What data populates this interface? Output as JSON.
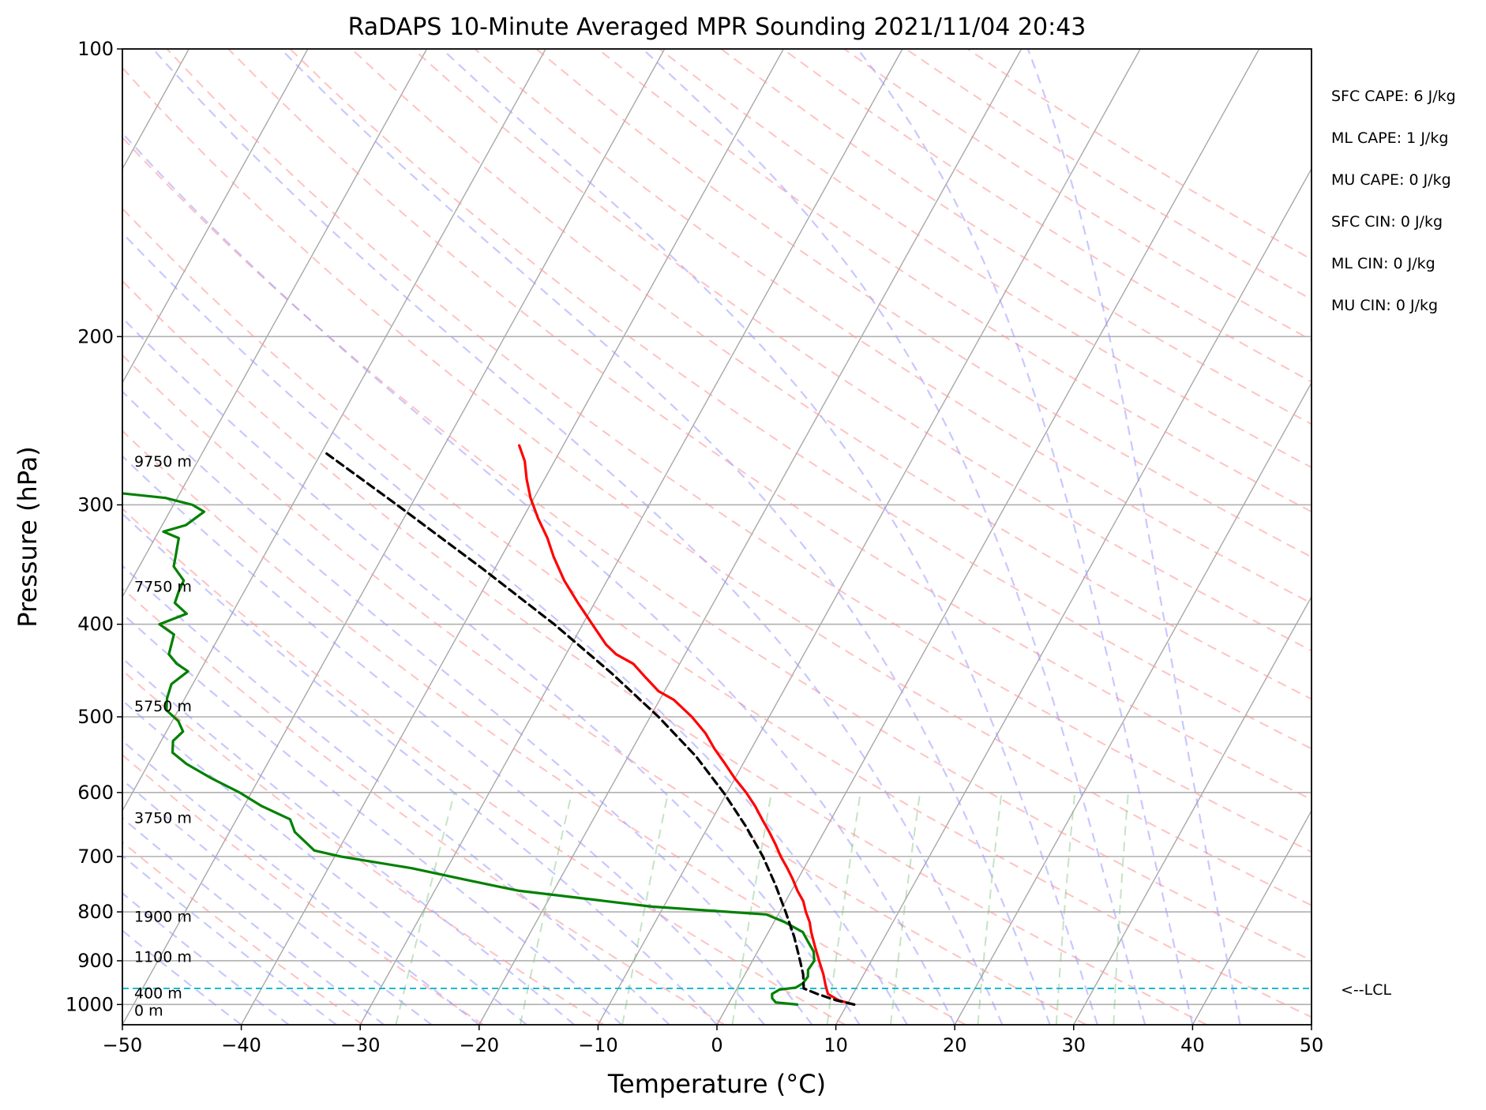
{
  "chart_data": {
    "type": "line",
    "title": "RaDAPS 10-Minute Averaged MPR Sounding 2021/11/04 20:43",
    "xlabel": "Temperature (°C)",
    "ylabel": "Pressure (hPa)",
    "xlim": [
      -50,
      50
    ],
    "ylim": [
      1050,
      100
    ],
    "y_scale": "log",
    "skew": "skew-T log-p",
    "grid": true,
    "x_ticks": [
      -50,
      -40,
      -30,
      -20,
      -10,
      0,
      10,
      20,
      30,
      40,
      50
    ],
    "x_tick_labels": [
      "−50",
      "−40",
      "−30",
      "−20",
      "−10",
      "0",
      "10",
      "20",
      "30",
      "40",
      "50"
    ],
    "y_ticks": [
      100,
      200,
      300,
      400,
      500,
      600,
      700,
      800,
      900,
      1000
    ],
    "y_tick_labels": [
      "100",
      "200",
      "300",
      "400",
      "500",
      "600",
      "700",
      "800",
      "900",
      "1000"
    ],
    "stats": [
      "SFC CAPE: 6 J/kg",
      "ML CAPE: 1 J/kg",
      "MU CAPE: 0 J/kg",
      "SFC CIN: 0 J/kg",
      "ML CIN: 0 J/kg",
      "MU CIN: 0 J/kg"
    ],
    "lcl_label": "<--LCL",
    "lcl_pressure": 962,
    "height_labels": [
      {
        "p": 270,
        "text": "9750 m"
      },
      {
        "p": 365,
        "text": "7750 m"
      },
      {
        "p": 487,
        "text": "5750 m"
      },
      {
        "p": 637,
        "text": "3750 m"
      },
      {
        "p": 808,
        "text": "1900 m"
      },
      {
        "p": 891,
        "text": "1100 m"
      },
      {
        "p": 972,
        "text": "400 m"
      },
      {
        "p": 1014,
        "text": "0 m"
      }
    ],
    "series": [
      {
        "key": "temperature",
        "color": "#ff0000",
        "points": [
          [
            1000,
            10.6
          ],
          [
            990,
            9.1
          ],
          [
            975,
            7.9
          ],
          [
            955,
            7.3
          ],
          [
            930,
            6.6
          ],
          [
            900,
            5.6
          ],
          [
            870,
            4.6
          ],
          [
            840,
            3.6
          ],
          [
            820,
            3.0
          ],
          [
            800,
            2.2
          ],
          [
            780,
            1.5
          ],
          [
            760,
            0.5
          ],
          [
            740,
            -0.4
          ],
          [
            720,
            -1.4
          ],
          [
            700,
            -2.5
          ],
          [
            680,
            -3.5
          ],
          [
            660,
            -4.6
          ],
          [
            640,
            -5.8
          ],
          [
            620,
            -7.0
          ],
          [
            600,
            -8.4
          ],
          [
            580,
            -10.0
          ],
          [
            560,
            -11.5
          ],
          [
            540,
            -13.1
          ],
          [
            520,
            -14.6
          ],
          [
            500,
            -16.5
          ],
          [
            480,
            -18.8
          ],
          [
            470,
            -20.5
          ],
          [
            455,
            -22.2
          ],
          [
            440,
            -23.9
          ],
          [
            430,
            -25.8
          ],
          [
            420,
            -27.1
          ],
          [
            400,
            -29.2
          ],
          [
            380,
            -31.4
          ],
          [
            360,
            -33.6
          ],
          [
            340,
            -35.6
          ],
          [
            325,
            -37.0
          ],
          [
            310,
            -38.7
          ],
          [
            295,
            -40.3
          ],
          [
            282,
            -41.5
          ],
          [
            270,
            -42.5
          ],
          [
            260,
            -43.7
          ]
        ]
      },
      {
        "key": "dewpoint",
        "color": "#008000",
        "points": [
          [
            1000,
            5.8
          ],
          [
            995,
            3.9
          ],
          [
            985,
            3.4
          ],
          [
            975,
            3.2
          ],
          [
            965,
            3.6
          ],
          [
            960,
            4.9
          ],
          [
            950,
            5.3
          ],
          [
            935,
            5.4
          ],
          [
            920,
            5.1
          ],
          [
            900,
            5.2
          ],
          [
            880,
            4.7
          ],
          [
            860,
            3.8
          ],
          [
            840,
            2.9
          ],
          [
            820,
            0.9
          ],
          [
            805,
            -1.0
          ],
          [
            790,
            -11.0
          ],
          [
            760,
            -23.0
          ],
          [
            740,
            -28.0
          ],
          [
            720,
            -33.0
          ],
          [
            700,
            -39.5
          ],
          [
            690,
            -42.0
          ],
          [
            660,
            -44.5
          ],
          [
            640,
            -45.5
          ],
          [
            620,
            -48.5
          ],
          [
            600,
            -51.0
          ],
          [
            580,
            -54.0
          ],
          [
            560,
            -56.8
          ],
          [
            545,
            -58.5
          ],
          [
            530,
            -59.0
          ],
          [
            518,
            -58.6
          ],
          [
            505,
            -59.5
          ],
          [
            492,
            -61.0
          ],
          [
            478,
            -61.5
          ],
          [
            462,
            -61.8
          ],
          [
            448,
            -61.0
          ],
          [
            440,
            -62.3
          ],
          [
            430,
            -63.4
          ],
          [
            410,
            -63.9
          ],
          [
            400,
            -65.6
          ],
          [
            390,
            -63.8
          ],
          [
            380,
            -65.3
          ],
          [
            370,
            -65.5
          ],
          [
            360,
            -65.6
          ],
          [
            348,
            -67.1
          ],
          [
            340,
            -67.4
          ],
          [
            325,
            -68.0
          ],
          [
            320,
            -69.6
          ],
          [
            315,
            -68.0
          ],
          [
            305,
            -67.1
          ],
          [
            300,
            -68.4
          ],
          [
            295,
            -71.0
          ],
          [
            290,
            -77.0
          ],
          [
            285,
            -89.4
          ]
        ]
      },
      {
        "key": "parcel",
        "color": "#000000",
        "dashed": true,
        "points": [
          [
            1000,
            10.6
          ],
          [
            990,
            8.9
          ],
          [
            975,
            7.0
          ],
          [
            962,
            5.6
          ],
          [
            930,
            4.9
          ],
          [
            900,
            4.0
          ],
          [
            850,
            2.4
          ],
          [
            800,
            0.5
          ],
          [
            750,
            -1.6
          ],
          [
            700,
            -4.0
          ],
          [
            650,
            -6.9
          ],
          [
            600,
            -10.3
          ],
          [
            550,
            -14.3
          ],
          [
            500,
            -19.3
          ],
          [
            450,
            -25.3
          ],
          [
            400,
            -32.4
          ],
          [
            350,
            -41.0
          ],
          [
            300,
            -51.2
          ],
          [
            264,
            -59.8
          ]
        ]
      }
    ]
  }
}
